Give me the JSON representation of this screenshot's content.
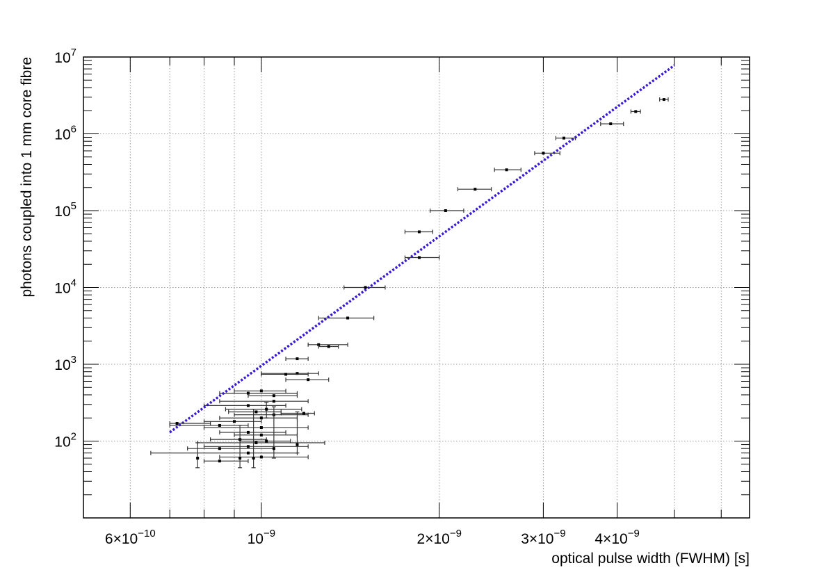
{
  "chart_data": {
    "type": "scatter",
    "title": "",
    "xlabel": "optical pulse width (FWHM) [s]",
    "ylabel": "photons coupled into 1 mm core fibre",
    "x_scale": "log",
    "y_scale": "log",
    "xlim": [
      5e-10,
      6.7e-09
    ],
    "ylim": [
      10,
      10000000.0
    ],
    "grid": true,
    "x_tick_labels": [
      {
        "value": 6e-10,
        "mant": "6×10",
        "exp": "−10"
      },
      {
        "value": 1e-09,
        "mant": "10",
        "exp": "−9"
      },
      {
        "value": 2e-09,
        "mant": "2×10",
        "exp": "−9"
      },
      {
        "value": 3e-09,
        "mant": "3×10",
        "exp": "−9"
      },
      {
        "value": 4e-09,
        "mant": "4×10",
        "exp": "−9"
      }
    ],
    "y_tick_labels": [
      {
        "value": 100,
        "mant": "10",
        "exp": "2"
      },
      {
        "value": 1000,
        "mant": "10",
        "exp": "3"
      },
      {
        "value": 10000,
        "mant": "10",
        "exp": "4"
      },
      {
        "value": 100000,
        "mant": "10",
        "exp": "5"
      },
      {
        "value": 1000000,
        "mant": "10",
        "exp": "6"
      },
      {
        "value": 10000000,
        "mant": "10",
        "exp": "7"
      }
    ],
    "x_grid": [
      6e-10,
      7e-10,
      8e-10,
      9e-10,
      1e-09,
      2e-09,
      3e-09,
      4e-09,
      5e-09,
      6e-09
    ],
    "y_grid": [
      100,
      1000,
      10000,
      100000,
      1000000,
      10000000
    ],
    "fit_line": {
      "x": [
        7e-10,
        5e-09
      ],
      "y": [
        130,
        7800000.0
      ],
      "color": "#3a1ad8"
    },
    "points": [
      {
        "x": 4.8e-09,
        "y": 2800000.0,
        "xerr": [
          8e-11,
          8e-11
        ],
        "yerr": [
          0,
          0
        ]
      },
      {
        "x": 4.3e-09,
        "y": 1950000.0,
        "xerr": [
          8e-11,
          8e-11
        ],
        "yerr": [
          0,
          0
        ]
      },
      {
        "x": 3.9e-09,
        "y": 1350000.0,
        "xerr": [
          1.5e-10,
          2e-10
        ],
        "yerr": [
          0,
          0
        ]
      },
      {
        "x": 3.25e-09,
        "y": 880000.0,
        "xerr": [
          1e-10,
          1.5e-10
        ],
        "yerr": [
          0,
          0
        ]
      },
      {
        "x": 3e-09,
        "y": 560000.0,
        "xerr": [
          1e-10,
          2e-10
        ],
        "yerr": [
          0,
          0
        ]
      },
      {
        "x": 2.6e-09,
        "y": 340000.0,
        "xerr": [
          1.2e-10,
          1.5e-10
        ],
        "yerr": [
          0,
          0
        ]
      },
      {
        "x": 2.3e-09,
        "y": 190000.0,
        "xerr": [
          1.5e-10,
          1.5e-10
        ],
        "yerr": [
          0,
          0
        ]
      },
      {
        "x": 2.05e-09,
        "y": 100000.0,
        "xerr": [
          1.2e-10,
          1.5e-10
        ],
        "yerr": [
          0,
          0
        ]
      },
      {
        "x": 1.85e-09,
        "y": 53000.0,
        "xerr": [
          1e-10,
          1e-10
        ],
        "yerr": [
          0,
          0
        ]
      },
      {
        "x": 1.85e-09,
        "y": 24500.0,
        "xerr": [
          1e-10,
          1.5e-10
        ],
        "yerr": [
          0,
          0
        ]
      },
      {
        "x": 1.5e-09,
        "y": 10000.0,
        "xerr": [
          1.2e-10,
          1.2e-10
        ],
        "yerr": [
          0,
          0
        ]
      },
      {
        "x": 1.4e-09,
        "y": 4000.0,
        "xerr": [
          1.5e-10,
          1.5e-10
        ],
        "yerr": [
          0,
          0
        ]
      },
      {
        "x": 1.25e-09,
        "y": 1800.0,
        "xerr": [
          5e-11,
          1.5e-10
        ],
        "yerr": [
          0,
          0
        ]
      },
      {
        "x": 1.3e-09,
        "y": 1700.0,
        "xerr": [
          5e-11,
          5e-11
        ],
        "yerr": [
          0,
          0
        ]
      },
      {
        "x": 1.15e-09,
        "y": 1180.0,
        "xerr": [
          5e-11,
          5e-11
        ],
        "yerr": [
          0,
          0
        ]
      },
      {
        "x": 1.15e-09,
        "y": 760,
        "xerr": [
          1.5e-10,
          1e-10
        ],
        "yerr": [
          0,
          0
        ]
      },
      {
        "x": 1.1e-09,
        "y": 740,
        "xerr": [
          1e-10,
          1e-10
        ],
        "yerr": [
          0,
          0
        ]
      },
      {
        "x": 1.2e-09,
        "y": 630,
        "xerr": [
          1e-10,
          1e-10
        ],
        "yerr": [
          0,
          0
        ]
      },
      {
        "x": 1e-09,
        "y": 450,
        "xerr": [
          1e-10,
          1e-10
        ],
        "yerr": [
          0,
          0
        ]
      },
      {
        "x": 9.5e-10,
        "y": 420,
        "xerr": [
          1e-10,
          2e-10
        ],
        "yerr": [
          0,
          0
        ]
      },
      {
        "x": 1.05e-09,
        "y": 390,
        "xerr": [
          1e-10,
          1e-10
        ],
        "yerr": [
          0,
          0
        ]
      },
      {
        "x": 1.05e-09,
        "y": 330,
        "xerr": [
          2e-10,
          1.5e-10
        ],
        "yerr": [
          0,
          0
        ]
      },
      {
        "x": 9.5e-10,
        "y": 290,
        "xerr": [
          1.5e-10,
          1.5e-10
        ],
        "yerr": [
          0,
          0
        ]
      },
      {
        "x": 1.02e-09,
        "y": 260,
        "xerr": [
          1.5e-10,
          1.5e-10
        ],
        "yerr": [
          60,
          60
        ]
      },
      {
        "x": 9.8e-10,
        "y": 240,
        "xerr": [
          1e-10,
          1e-10
        ],
        "yerr": [
          0,
          0
        ]
      },
      {
        "x": 1.05e-09,
        "y": 220,
        "xerr": [
          1.5e-10,
          1.5e-10
        ],
        "yerr": [
          0,
          0
        ]
      },
      {
        "x": 1e-09,
        "y": 200,
        "xerr": [
          1.5e-10,
          1.5e-10
        ],
        "yerr": [
          0,
          0
        ]
      },
      {
        "x": 9e-10,
        "y": 180,
        "xerr": [
          1e-10,
          1e-10
        ],
        "yerr": [
          0,
          0
        ]
      },
      {
        "x": 8.5e-10,
        "y": 160,
        "xerr": [
          1.5e-10,
          1e-10
        ],
        "yerr": [
          0,
          0
        ]
      },
      {
        "x": 1e-09,
        "y": 150,
        "xerr": [
          2e-10,
          2e-10
        ],
        "yerr": [
          0,
          0
        ]
      },
      {
        "x": 9.5e-10,
        "y": 130,
        "xerr": [
          1e-10,
          1.5e-10
        ],
        "yerr": [
          0,
          0
        ]
      },
      {
        "x": 1e-09,
        "y": 120,
        "xerr": [
          1e-10,
          1.5e-10
        ],
        "yerr": [
          0,
          0
        ]
      },
      {
        "x": 9.2e-10,
        "y": 105,
        "xerr": [
          1e-10,
          1e-10
        ],
        "yerr": [
          0,
          0
        ]
      },
      {
        "x": 1.02e-09,
        "y": 100,
        "xerr": [
          1e-10,
          1e-10
        ],
        "yerr": [
          0,
          0
        ]
      },
      {
        "x": 9.8e-10,
        "y": 95,
        "xerr": [
          2e-10,
          3e-10
        ],
        "yerr": [
          0,
          0
        ]
      },
      {
        "x": 9.5e-10,
        "y": 85,
        "xerr": [
          1.5e-10,
          2.5e-10
        ],
        "yerr": [
          0,
          0
        ]
      },
      {
        "x": 8.5e-10,
        "y": 80,
        "xerr": [
          1e-10,
          2e-10
        ],
        "yerr": [
          0,
          0
        ]
      },
      {
        "x": 9.5e-10,
        "y": 70,
        "xerr": [
          3e-10,
          2e-10
        ],
        "yerr": [
          0,
          0
        ]
      },
      {
        "x": 1e-09,
        "y": 62,
        "xerr": [
          1.5e-10,
          2e-10
        ],
        "yerr": [
          0,
          0
        ]
      },
      {
        "x": 8.5e-10,
        "y": 55,
        "xerr": [
          5e-11,
          1e-10
        ],
        "yerr": [
          0,
          0
        ]
      },
      {
        "x": 7.8e-10,
        "y": 60,
        "xerr": [
          0,
          0
        ],
        "yerr": [
          15,
          35
        ]
      },
      {
        "x": 9.2e-10,
        "y": 60,
        "xerr": [
          0,
          0
        ],
        "yerr": [
          15,
          100
        ]
      },
      {
        "x": 9.7e-10,
        "y": 60,
        "xerr": [
          0,
          0
        ],
        "yerr": [
          15,
          200
        ]
      },
      {
        "x": 1.05e-09,
        "y": 80,
        "xerr": [
          0,
          0
        ],
        "yerr": [
          20,
          200
        ]
      },
      {
        "x": 1.15e-09,
        "y": 90,
        "xerr": [
          0,
          0
        ],
        "yerr": [
          20,
          150
        ]
      },
      {
        "x": 7.2e-10,
        "y": 170,
        "xerr": [
          2e-11,
          1e-10
        ],
        "yerr": [
          0,
          0
        ]
      },
      {
        "x": 1.18e-09,
        "y": 230,
        "xerr": [
          1e-10,
          5e-11
        ],
        "yerr": [
          0,
          0
        ]
      }
    ]
  }
}
